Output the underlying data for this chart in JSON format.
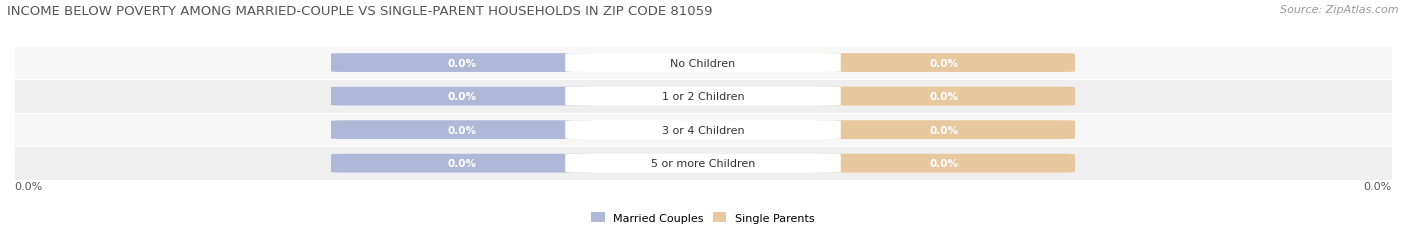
{
  "title": "INCOME BELOW POVERTY AMONG MARRIED-COUPLE VS SINGLE-PARENT HOUSEHOLDS IN ZIP CODE 81059",
  "source": "Source: ZipAtlas.com",
  "categories": [
    "No Children",
    "1 or 2 Children",
    "3 or 4 Children",
    "5 or more Children"
  ],
  "married_values": [
    0.0,
    0.0,
    0.0,
    0.0
  ],
  "single_values": [
    0.0,
    0.0,
    0.0,
    0.0
  ],
  "married_color": "#b0b8d8",
  "single_color": "#e8c89e",
  "row_bg_colors": [
    "#f7f7f7",
    "#efefef",
    "#f7f7f7",
    "#efefef"
  ],
  "title_fontsize": 9.5,
  "source_fontsize": 8,
  "value_fontsize": 7.5,
  "category_fontsize": 8,
  "legend_fontsize": 8,
  "axis_label_fontsize": 8,
  "axis_label_left": "0.0%",
  "axis_label_right": "0.0%",
  "figsize": [
    14.06,
    2.32
  ],
  "dpi": 100
}
